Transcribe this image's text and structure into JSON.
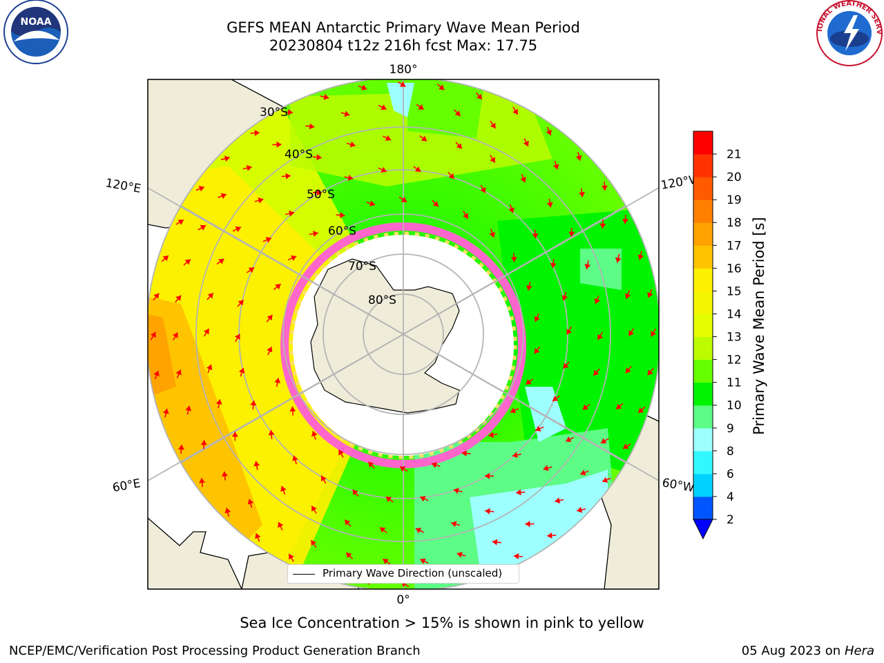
{
  "header": {
    "title_line1": "GEFS MEAN Antarctic Primary Wave Mean Period",
    "title_line2": "20230804 t12z 216h fcst   Max: 17.75"
  },
  "logos": {
    "left": {
      "icon": "noaa-logo",
      "text": "NOAA"
    },
    "right": {
      "icon": "nws-logo",
      "text": "NATIONAL WEATHER SERVICE"
    }
  },
  "map": {
    "projection": "south-polar-stereographic",
    "longitude_labels": {
      "top": "180°",
      "bottom": "0°",
      "left_upper": "120°E",
      "left_lower": "60°E",
      "right_upper": "120°W",
      "right_lower": "60°W"
    },
    "latitude_labels": [
      "30°S",
      "40°S",
      "50°S",
      "60°S",
      "70°S",
      "80°S"
    ],
    "colors": {
      "land": "#efedda",
      "ocean_missing": "#ffffff",
      "arrow": "#ff0000",
      "graticule": "#b4b4b4"
    }
  },
  "colorbar": {
    "label": "Primary Wave Mean Period [s]",
    "ticks": [
      "2",
      "4",
      "6",
      "8",
      "9",
      "10",
      "11",
      "12",
      "13",
      "14",
      "15",
      "16",
      "17",
      "18",
      "19",
      "20",
      "21"
    ],
    "colors": [
      "#0055ff",
      "#00d2ff",
      "#33f7ff",
      "#9effff",
      "#5cfc86",
      "#00f400",
      "#66ff00",
      "#bcfb00",
      "#e4fd00",
      "#f4f700",
      "#fff000",
      "#ffc400",
      "#ffa300",
      "#ff8000",
      "#ff5a00",
      "#ff3300",
      "#ff0000"
    ],
    "extend_color": "#0000ff"
  },
  "legend": {
    "entry": "Primary Wave Direction (unscaled)"
  },
  "footer": {
    "note": "Sea Ice Concentration > 15% is shown in pink to yellow",
    "credit": "NCEP/EMC/Verification Post Processing Product Generation Branch",
    "date": "05 Aug 2023 on",
    "machine": "Hera"
  }
}
